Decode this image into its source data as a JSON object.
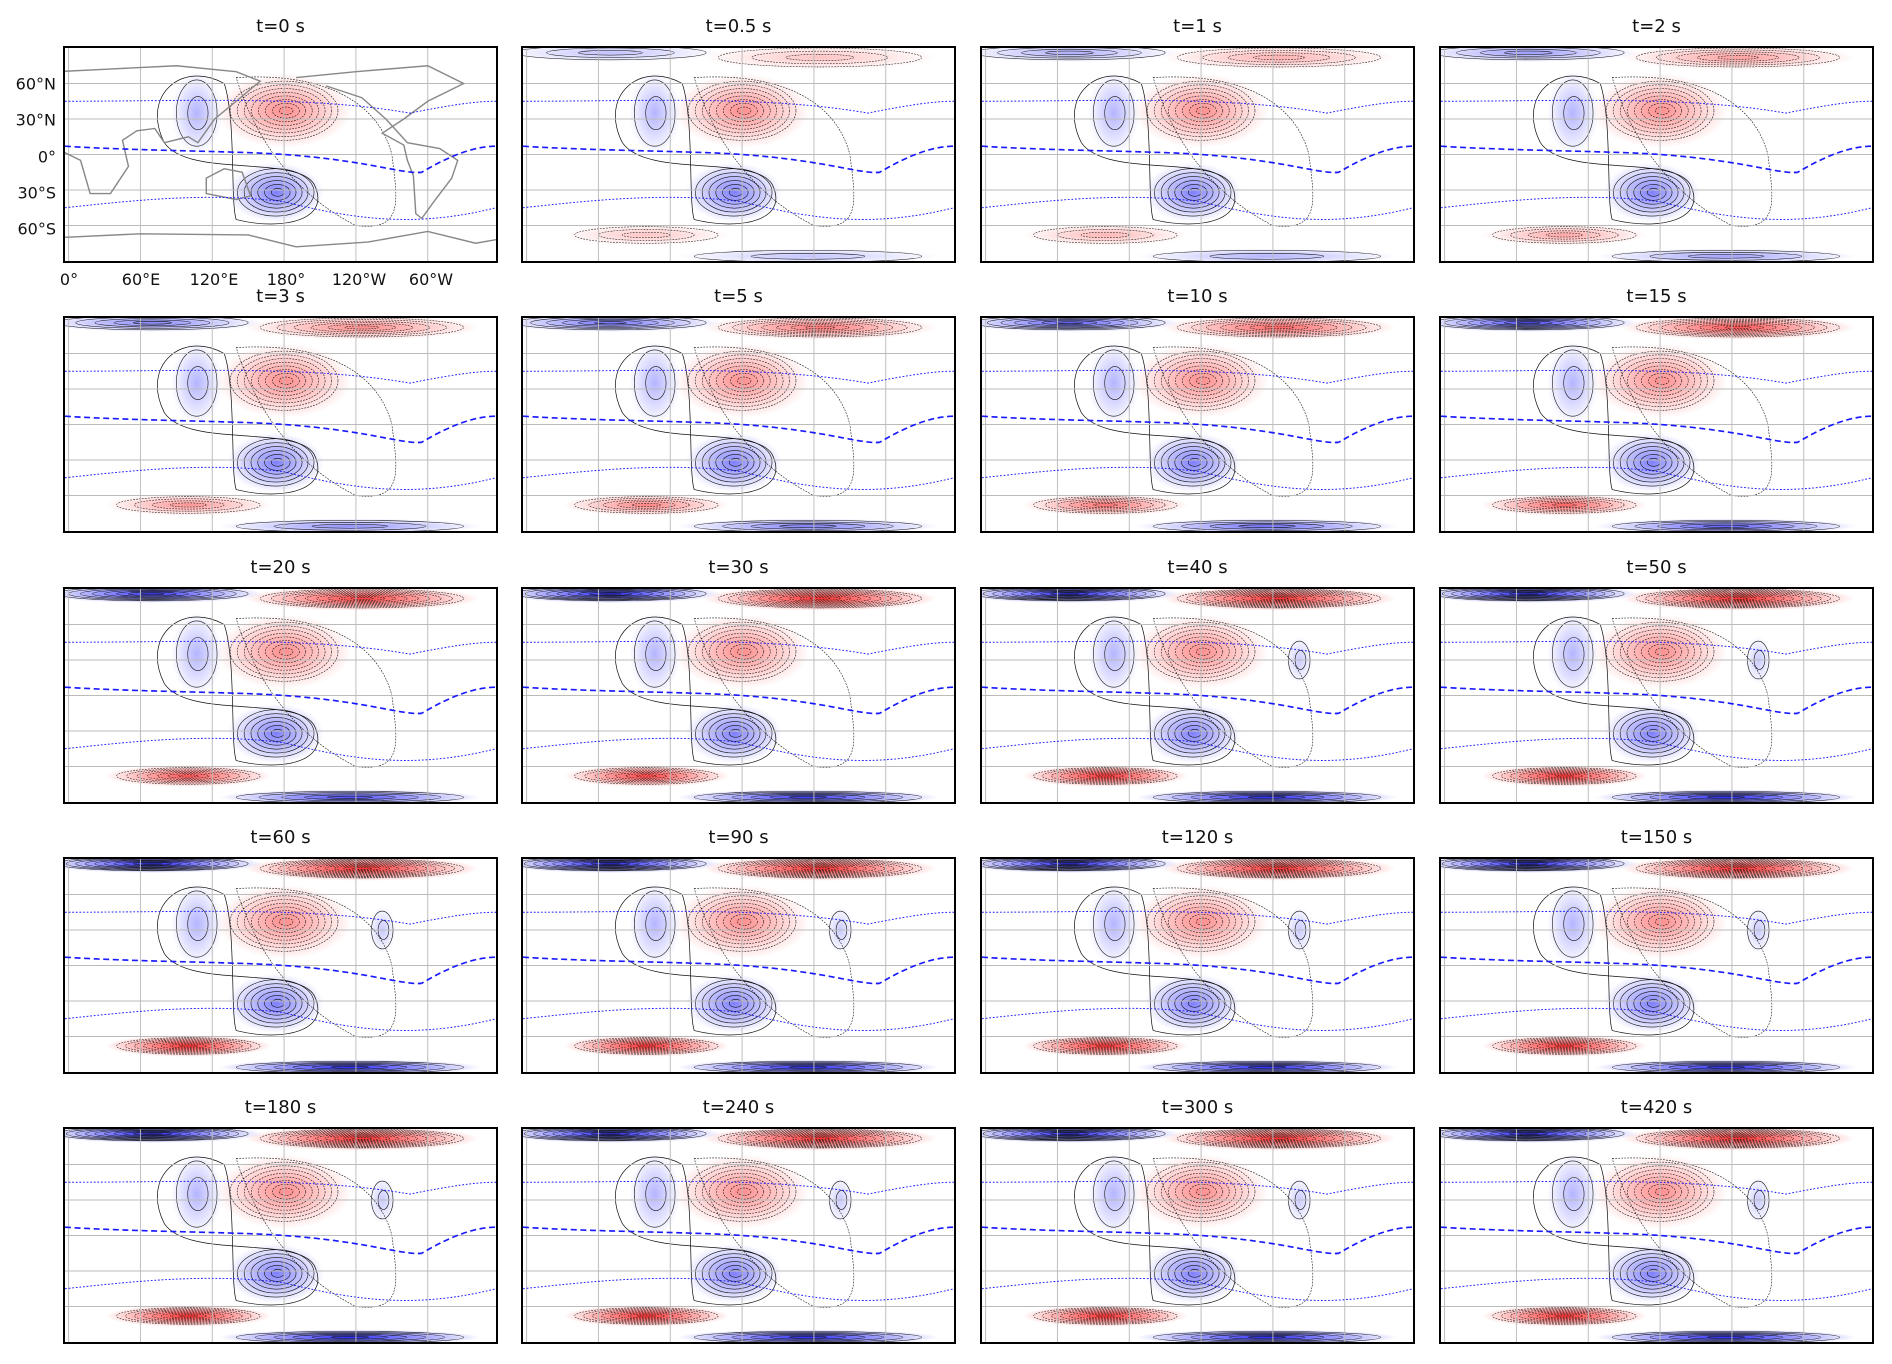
{
  "figure": {
    "panels": [
      {
        "title": "t=0 s"
      },
      {
        "title": "t=0.5 s"
      },
      {
        "title": "t=1 s"
      },
      {
        "title": "t=2 s"
      },
      {
        "title": "t=3 s"
      },
      {
        "title": "t=5 s"
      },
      {
        "title": "t=10 s"
      },
      {
        "title": "t=15 s"
      },
      {
        "title": "t=20 s"
      },
      {
        "title": "t=30 s"
      },
      {
        "title": "t=40 s"
      },
      {
        "title": "t=50 s"
      },
      {
        "title": "t=60 s"
      },
      {
        "title": "t=90 s"
      },
      {
        "title": "t=120 s"
      },
      {
        "title": "t=150 s"
      },
      {
        "title": "t=180 s"
      },
      {
        "title": "t=240 s"
      },
      {
        "title": "t=300 s"
      },
      {
        "title": "t=420 s"
      }
    ],
    "lat_ticks": [
      "60°N",
      "30°N",
      "0°",
      "30°S",
      "60°S"
    ],
    "lon_ticks": [
      "0°",
      "60°E",
      "120°E",
      "180°",
      "120°W",
      "60°W"
    ],
    "colors": {
      "positive": "#ff3030",
      "negative": "#2a2aff",
      "contour": "#111111",
      "jet_line": "#1a1aff",
      "grid": "#bbbbbb",
      "coastline": "#888888"
    }
  }
}
